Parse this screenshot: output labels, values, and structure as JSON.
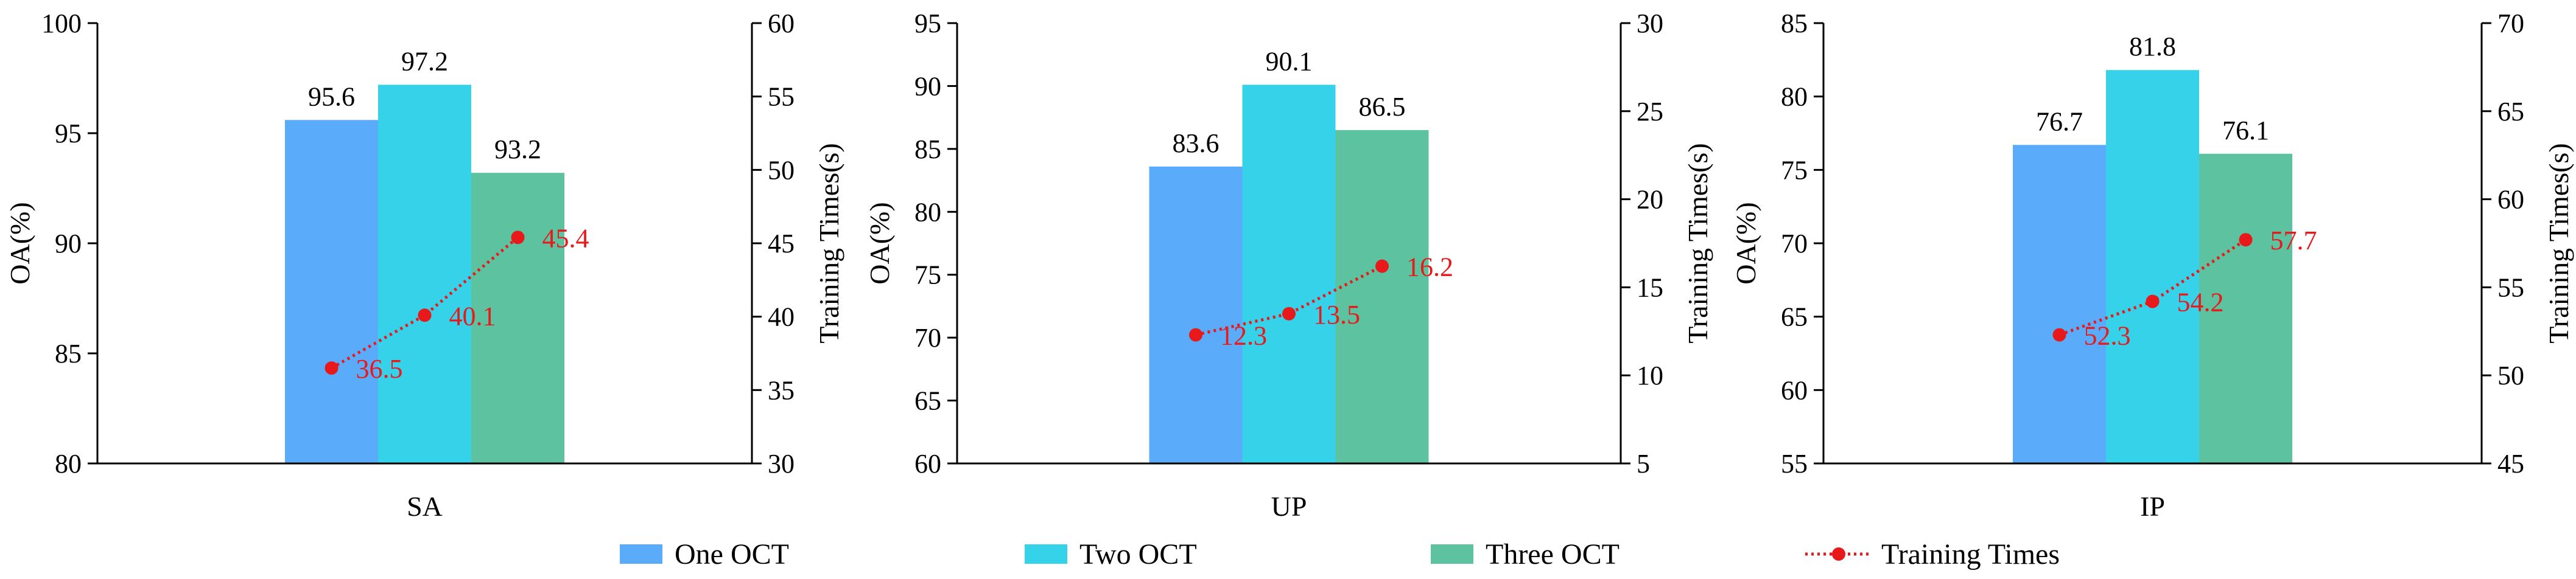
{
  "colors": {
    "one_oct": "#5aabf9",
    "two_oct": "#35d2ea",
    "three_oct": "#5cc29f",
    "training_line": "#e8191a",
    "axis": "#000000",
    "value_text": "#000000",
    "time_text": "#e8191a"
  },
  "legend": {
    "placement": "bottom-center",
    "items": [
      {
        "label": "One OCT",
        "color_key": "one_oct",
        "kind": "bar"
      },
      {
        "label": "Two OCT",
        "color_key": "two_oct",
        "kind": "bar"
      },
      {
        "label": "Three OCT",
        "color_key": "three_oct",
        "kind": "bar"
      },
      {
        "label": "Training Times",
        "color_key": "training_line",
        "kind": "line"
      }
    ]
  },
  "chart_data": [
    {
      "type": "bar",
      "category": "SA",
      "ylabel": "OA(%)",
      "ylim": [
        80,
        100
      ],
      "yticks": [
        80,
        85,
        90,
        95,
        100
      ],
      "y2label": "Training Times(s)",
      "y2lim": [
        30,
        60
      ],
      "y2ticks": [
        30,
        35,
        40,
        45,
        50,
        55,
        60
      ],
      "bars": [
        {
          "series": "One OCT",
          "value": 95.6,
          "label": "95.6"
        },
        {
          "series": "Two OCT",
          "value": 97.2,
          "label": "97.2"
        },
        {
          "series": "Three OCT",
          "value": 93.2,
          "label": "93.2"
        }
      ],
      "times": [
        {
          "value": 36.5,
          "label": "36.5"
        },
        {
          "value": 40.1,
          "label": "40.1"
        },
        {
          "value": 45.4,
          "label": "45.4"
        }
      ],
      "grid": false
    },
    {
      "type": "bar",
      "category": "UP",
      "ylabel": "OA(%)",
      "ylim": [
        60,
        95
      ],
      "yticks": [
        60,
        65,
        70,
        75,
        80,
        85,
        90,
        95
      ],
      "y2label": "Training Times(s)",
      "y2lim": [
        5,
        30
      ],
      "y2ticks": [
        5,
        10,
        15,
        20,
        25,
        30
      ],
      "bars": [
        {
          "series": "One OCT",
          "value": 83.6,
          "label": "83.6"
        },
        {
          "series": "Two OCT",
          "value": 90.1,
          "label": "90.1"
        },
        {
          "series": "Three OCT",
          "value": 86.5,
          "label": "86.5"
        }
      ],
      "times": [
        {
          "value": 12.3,
          "label": "12.3"
        },
        {
          "value": 13.5,
          "label": "13.5"
        },
        {
          "value": 16.2,
          "label": "16.2"
        }
      ],
      "grid": false
    },
    {
      "type": "bar",
      "category": "IP",
      "ylabel": "OA(%)",
      "ylim": [
        55,
        85
      ],
      "yticks": [
        55,
        60,
        65,
        70,
        75,
        80,
        85
      ],
      "y2label": "Training Times(s)",
      "y2lim": [
        45,
        70
      ],
      "y2ticks": [
        45,
        50,
        55,
        60,
        65,
        70
      ],
      "bars": [
        {
          "series": "One OCT",
          "value": 76.7,
          "label": "76.7"
        },
        {
          "series": "Two OCT",
          "value": 81.8,
          "label": "81.8"
        },
        {
          "series": "Three OCT",
          "value": 76.1,
          "label": "76.1"
        }
      ],
      "times": [
        {
          "value": 52.3,
          "label": "52.3"
        },
        {
          "value": 54.2,
          "label": "54.2"
        },
        {
          "value": 57.7,
          "label": "57.7"
        }
      ],
      "grid": false
    }
  ]
}
